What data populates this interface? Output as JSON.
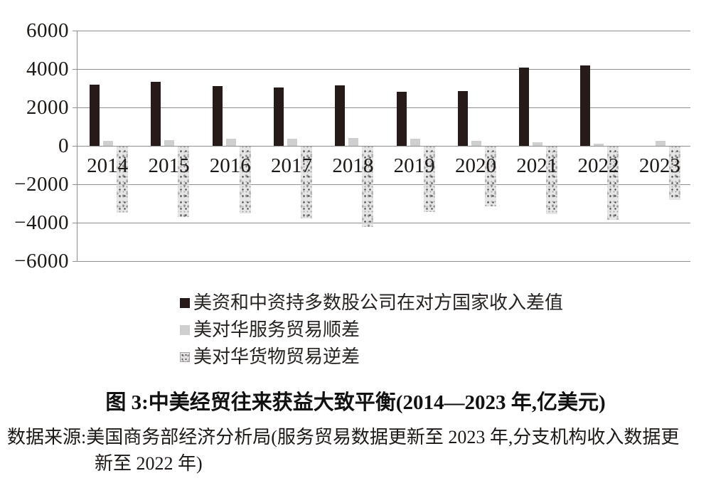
{
  "chart_data": {
    "type": "bar",
    "title": "图 3:中美经贸往来获益大致平衡(2014—2023 年,亿美元)",
    "source_line1": "数据来源:美国商务部经济分析局(服务贸易数据更新至 2023 年,分支机构收入数据更",
    "source_line2": "新至 2022 年)",
    "categories": [
      "2014",
      "2015",
      "2016",
      "2017",
      "2018",
      "2019",
      "2020",
      "2021",
      "2022",
      "2023"
    ],
    "series": [
      {
        "name": "美资和中资持多数股公司在对方国家收入差值",
        "style": "solid-black",
        "values": [
          3200,
          3350,
          3130,
          3050,
          3150,
          2800,
          2870,
          4080,
          4170,
          null
        ]
      },
      {
        "name": "美对华服务贸易顺差",
        "style": "solid-gray",
        "values": [
          260,
          300,
          360,
          390,
          400,
          380,
          250,
          180,
          130,
          270
        ]
      },
      {
        "name": "美对华货物贸易逆差",
        "style": "textured-gray",
        "values": [
          -3440,
          -3670,
          -3470,
          -3750,
          -4180,
          -3420,
          -3100,
          -3530,
          -3830,
          -2790
        ]
      }
    ],
    "ylim": [
      -6000,
      6000
    ],
    "ytick_interval": 2000,
    "ytick_labels": [
      "6000",
      "4000",
      "2000",
      "0",
      "−2000",
      "−4000",
      "−6000"
    ],
    "grid": true,
    "legend_position": "bottom-left",
    "legend_markers": [
      "solid-black-square",
      "solid-gray-square",
      "textured-square"
    ]
  },
  "colors": {
    "bar_black": "#261b18",
    "bar_gray": "#cfcfcf",
    "bar_textured_base": "#d6d6d6",
    "gridline": "#8f8f8f",
    "text": "#1c1816",
    "background": "#ffffff"
  }
}
